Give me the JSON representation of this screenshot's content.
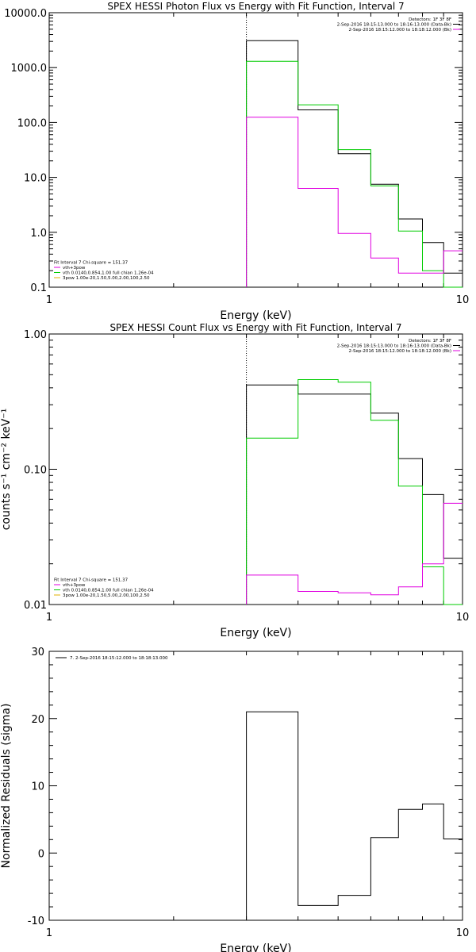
{
  "chart_data": [
    {
      "type": "line",
      "title": "SPEX HESSI Photon Flux vs Energy with Fit Function, Interval 7",
      "xlabel": "Energy (keV)",
      "ylabel": "",
      "xscale": "log",
      "yscale": "log",
      "xlim": [
        1,
        10
      ],
      "ylim": [
        0.1,
        10000
      ],
      "x_ticks": [
        "1",
        "10"
      ],
      "y_ticks": [
        "10000.0",
        "1000.0",
        "100.0",
        "10.0",
        "1.0",
        "0.1"
      ],
      "energy_marker": 3,
      "legend_top": [
        "Detectors: 1F 3F 8F",
        "2-Sep-2016 18:15:13.000 to 18:16:13.000 (Data-Bk)",
        "2-Sep-2016 18:15:12.000 to 18:18:12.000 (Bk)"
      ],
      "legend_bottom": [
        "Fit Interval  7   Chi-square = 151.37",
        "vth+3pow",
        "vth 0.0140,0.854,1.00  full chian 1.26e-04",
        "3pow 1.00e-20,1.50,5.00,2.00,100,2.50"
      ],
      "bin_edges": [
        3.0,
        4.0,
        5.0,
        6.0,
        7.0,
        8.0,
        9.0,
        10.0
      ],
      "series": [
        {
          "color": "#000000",
          "values": [
            3100,
            170,
            27,
            7.5,
            1.75,
            0.65,
            0.18
          ]
        },
        {
          "color": "#00cc00",
          "values": [
            1300,
            210,
            32,
            7.0,
            1.05,
            0.2,
            0.08
          ]
        },
        {
          "color": "#e000e0",
          "values": [
            125,
            6.3,
            0.95,
            0.34,
            0.18,
            0.18,
            0.46
          ]
        }
      ]
    },
    {
      "type": "line",
      "title": "SPEX HESSI Count Flux vs Energy with Fit Function, Interval 7",
      "xlabel": "Energy (keV)",
      "ylabel": "counts s⁻¹ cm⁻² keV⁻¹",
      "xscale": "log",
      "yscale": "log",
      "xlim": [
        1,
        10
      ],
      "ylim": [
        0.01,
        1
      ],
      "x_ticks": [
        "1",
        "10"
      ],
      "y_ticks": [
        "1.00",
        "0.10",
        "0.01"
      ],
      "energy_marker": 3,
      "legend_top": [
        "Detectors: 1F 3F 8F",
        "2-Sep-2016 18:15:13.000 to 18:16:13.000 (Data-Bk)",
        "2-Sep-2016 18:15:12.000 to 18:18:12.000 (Bk)"
      ],
      "legend_bottom": [
        "Fit Interval  7   Chi-square = 151.37",
        "vth+3pow",
        "vth 0.0140,0.854,1.00  full chian 1.26e-04",
        "3pow 1.00e-20,1.50,5.00,2.00,100,2.50"
      ],
      "bin_edges": [
        3.0,
        4.0,
        5.0,
        6.0,
        7.0,
        8.0,
        9.0,
        10.0
      ],
      "series": [
        {
          "color": "#000000",
          "values": [
            0.42,
            0.36,
            0.36,
            0.26,
            0.12,
            0.065,
            0.022
          ]
        },
        {
          "color": "#00cc00",
          "values": [
            0.17,
            0.46,
            0.44,
            0.23,
            0.075,
            0.019,
            0.008
          ]
        },
        {
          "color": "#e000e0",
          "values": [
            0.0165,
            0.0125,
            0.0122,
            0.0118,
            0.0135,
            0.02,
            0.056
          ]
        }
      ]
    },
    {
      "type": "line",
      "title": "",
      "xlabel": "Energy (keV)",
      "ylabel": "Normalized Residuals (sigma)",
      "xscale": "log",
      "yscale": "linear",
      "xlim": [
        1,
        10
      ],
      "ylim": [
        -10,
        30
      ],
      "x_ticks": [
        "1",
        "10"
      ],
      "y_ticks": [
        "30",
        "20",
        "10",
        "0",
        "-10"
      ],
      "legend_top": [
        "7.  2-Sep-2016 18:15:12.000 to 18:18:13.000"
      ],
      "bin_edges": [
        3.0,
        4.0,
        5.0,
        6.0,
        7.0,
        8.0,
        9.0,
        10.0
      ],
      "series": [
        {
          "color": "#000000",
          "values": [
            21,
            -7.8,
            -6.3,
            2.3,
            6.5,
            7.3,
            2.1
          ]
        }
      ]
    }
  ]
}
